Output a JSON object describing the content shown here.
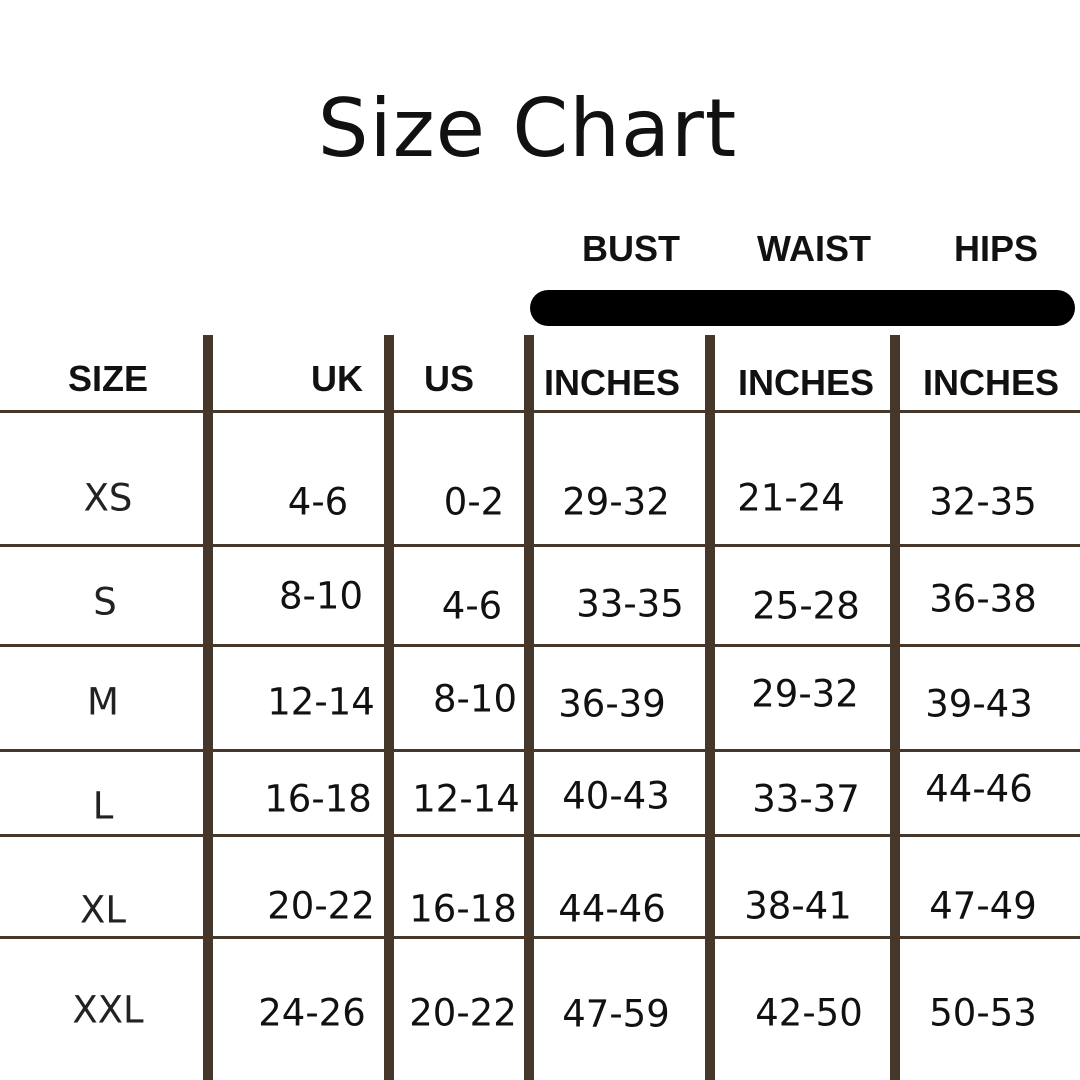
{
  "title": "Size Chart",
  "groups": [
    "BUST",
    "WAIST",
    "HIPS"
  ],
  "headers": [
    "SIZE",
    "UK",
    "US",
    "INCHES",
    "INCHES",
    "INCHES"
  ],
  "rows": [
    [
      "XS",
      "4-6",
      "0-2",
      "29-32",
      "21-24",
      "32-35"
    ],
    [
      "S",
      "8-10",
      "4-6",
      "33-35",
      "25-28",
      "36-38"
    ],
    [
      "M",
      "12-14",
      "8-10",
      "36-39",
      "29-32",
      "39-43"
    ],
    [
      "L",
      "16-18",
      "12-14",
      "40-43",
      "33-37",
      "44-46"
    ],
    [
      "XL",
      "20-22",
      "16-18",
      "44-46",
      "38-41",
      "47-49"
    ],
    [
      "XXL",
      "24-26",
      "20-22",
      "47-59",
      "42-50",
      "50-53"
    ]
  ],
  "colors": {
    "grid": "#45372a",
    "text": "#111111",
    "bar": "#000000"
  }
}
